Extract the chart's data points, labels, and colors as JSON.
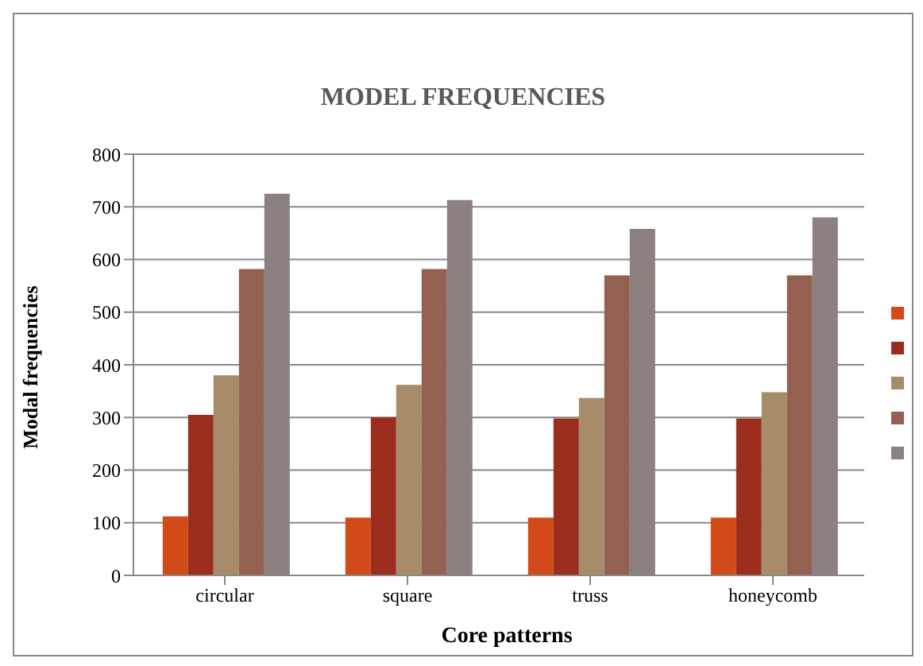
{
  "chart_data": {
    "type": "bar",
    "title": "MODEL FREQUENCIES",
    "xlabel": "Core patterns",
    "ylabel": "Modal frequencies",
    "categories": [
      "circular",
      "square",
      "truss",
      "honeycomb"
    ],
    "series": [
      {
        "color": "#d24a18",
        "values": [
          112,
          110,
          110,
          110
        ]
      },
      {
        "color": "#9b2d1f",
        "values": [
          305,
          300,
          298,
          298
        ]
      },
      {
        "color": "#a68c69",
        "values": [
          380,
          362,
          337,
          348
        ]
      },
      {
        "color": "#946052",
        "values": [
          582,
          582,
          570,
          570
        ]
      },
      {
        "color": "#8c8080",
        "values": [
          725,
          713,
          658,
          680
        ]
      }
    ],
    "ylim": [
      0,
      800
    ],
    "yticks": [
      0,
      100,
      200,
      300,
      400,
      500,
      600,
      700,
      800
    ],
    "grid": "y"
  }
}
